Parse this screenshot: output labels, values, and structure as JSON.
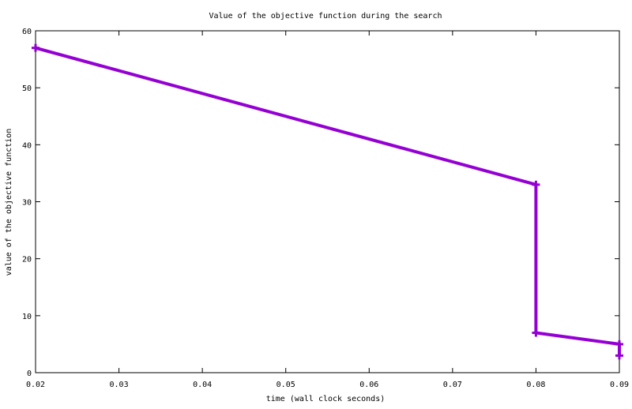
{
  "chart_data": {
    "type": "line",
    "title": "Value of the objective function during the search",
    "xlabel": "time (wall clock seconds)",
    "ylabel": "value of the objective function",
    "xlim": [
      0.02,
      0.09
    ],
    "ylim": [
      0,
      60
    ],
    "xticks": [
      "0.02",
      "0.03",
      "0.04",
      "0.05",
      "0.06",
      "0.07",
      "0.08",
      "0.09"
    ],
    "yticks": [
      "0",
      "10",
      "20",
      "30",
      "40",
      "50",
      "60"
    ],
    "grid": false,
    "legend": "none",
    "series": [
      {
        "color": "#9400d3",
        "x": [
          0.02,
          0.08,
          0.08,
          0.09,
          0.09
        ],
        "y": [
          57,
          33,
          7,
          5,
          3
        ]
      }
    ]
  }
}
